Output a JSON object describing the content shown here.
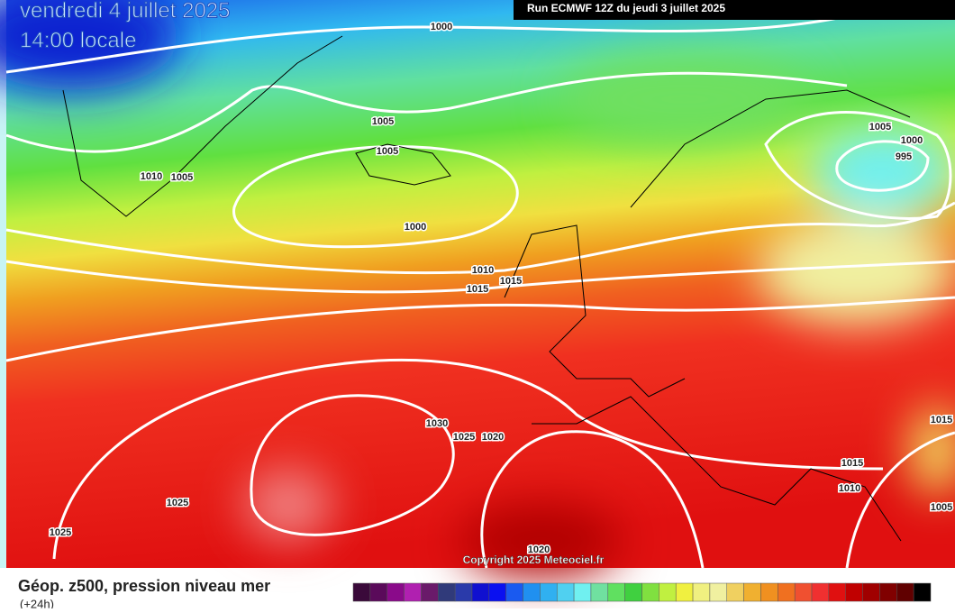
{
  "header": {
    "date": "vendredi 4 juillet 2025",
    "time": "14:00 locale",
    "run": "Run ECMWF 12Z du jeudi 3 juillet 2025"
  },
  "map": {
    "isobar_labels": [
      1000,
      1005,
      1005,
      1010,
      1005,
      1000,
      1005,
      1000,
      995,
      1010,
      1015,
      1015,
      1030,
      1025,
      1020,
      1025,
      1025,
      1015,
      1015,
      1010,
      1005,
      1020
    ],
    "copyright": "Copyright 2025 Meteociel.fr"
  },
  "footer": {
    "title": "Géop. z500, pression niveau mer",
    "subtitle": "(+24h)",
    "scale_colors": [
      "#3a0a3a",
      "#5a0a5a",
      "#8a0a8a",
      "#b020b0",
      "#6a1a6a",
      "#303a7a",
      "#2a3aaa",
      "#1010d0",
      "#0a10f0",
      "#1a5af0",
      "#2090f0",
      "#30b0f0",
      "#50d0f0",
      "#70f0f0",
      "#70e0a0",
      "#60e060",
      "#40d040",
      "#80e040",
      "#c0f040",
      "#f0f040",
      "#f0f080",
      "#f0f0a0",
      "#f0d060",
      "#f0b030",
      "#f09020",
      "#f07020",
      "#f05030",
      "#f03030",
      "#e01010",
      "#c00000",
      "#a00000",
      "#800000",
      "#600000",
      "#000000"
    ]
  }
}
